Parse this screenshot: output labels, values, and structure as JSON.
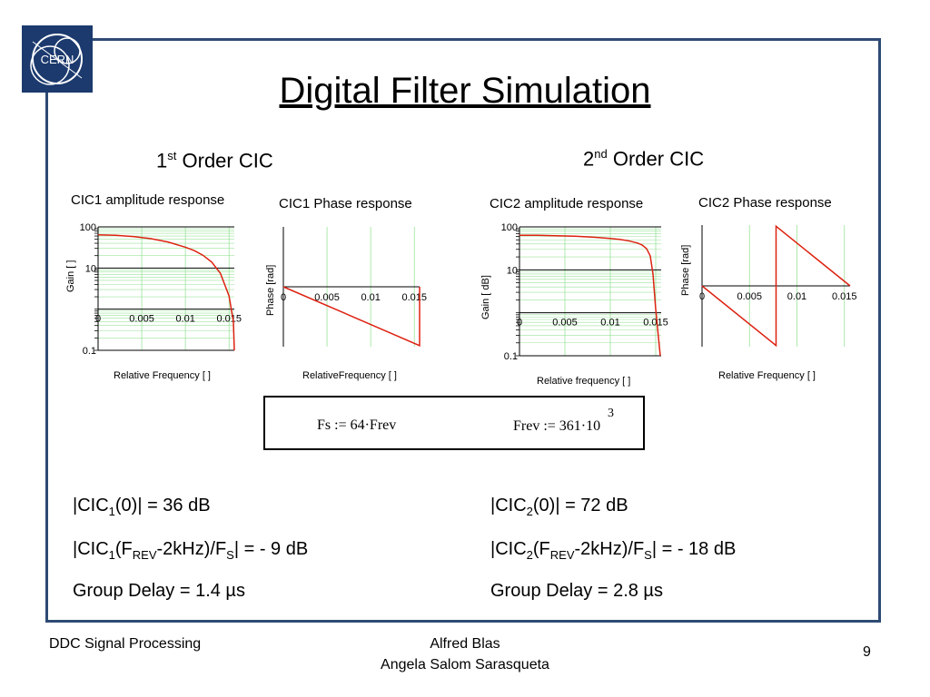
{
  "title": "Digital Filter Simulation",
  "sections": {
    "first": {
      "num": "1",
      "sup": "st",
      "text": "Order CIC"
    },
    "second": {
      "num": "2",
      "sup": "nd",
      "text": "Order CIC"
    }
  },
  "formula": {
    "fs": "Fs := 64·Frev",
    "frev": "Frev := 361·10",
    "frev_exp": "3"
  },
  "results": {
    "cic1_dc": {
      "pre": "|CIC",
      "sub": "1",
      "post": "(0)| = 36 dB"
    },
    "cic1_att": {
      "pre": "|CIC",
      "sub1": "1",
      "mid1": "(F",
      "sub2": "REV",
      "mid2": "-2kHz)/F",
      "sub3": "S",
      "post": "| = - 9 dB"
    },
    "cic1_delay": "Group Delay = 1.4 µs",
    "cic2_dc": {
      "pre": "|CIC",
      "sub": "2",
      "post": "(0)| = 72 dB"
    },
    "cic2_att": {
      "pre": "|CIC",
      "sub1": "2",
      "mid1": "(F",
      "sub2": "REV",
      "mid2": "-2kHz)/F",
      "sub3": "S",
      "post": "| = - 18 dB"
    },
    "cic2_delay": "Group Delay = 2.8 µs"
  },
  "footer": {
    "left": "DDC Signal Processing",
    "author1": "Alfred Blas",
    "author2": "Angela Salom Sarasqueta",
    "page": "9"
  },
  "logo_text": "CERN",
  "colors": {
    "frame": "#2e4a74",
    "curve": "#dd2211",
    "grid": "#9be39b",
    "logo": "#1c3a6e"
  },
  "chart_data": [
    {
      "type": "line",
      "title": "CIC1 amplitude response",
      "xlabel": "Relative Frequency [ ]",
      "ylabel": "Gain [ ]",
      "yscale": "log",
      "xlim": [
        0,
        0.0156
      ],
      "ylim": [
        0.1,
        100
      ],
      "x_ticks": [
        "0",
        "0.005",
        "0.01",
        "0.015"
      ],
      "y_ticks": [
        "0.1",
        "1",
        "10",
        "100"
      ],
      "x": [
        0,
        0.002,
        0.004,
        0.006,
        0.008,
        0.01,
        0.011,
        0.012,
        0.013,
        0.014,
        0.015,
        0.0155,
        0.0156
      ],
      "y": [
        64,
        62.5,
        58.5,
        52,
        43,
        32,
        26.5,
        20.5,
        14,
        7.5,
        2.1,
        0.5,
        0.1
      ]
    },
    {
      "type": "line",
      "title": "CIC1 Phase response",
      "xlabel": "RelativeFrequency [ ]",
      "ylabel": "Phase [rad]",
      "xlim": [
        0,
        0.0156
      ],
      "ylim": [
        -3.2,
        3.2
      ],
      "x_ticks": [
        "0",
        "0.005",
        "0.01",
        "0.015"
      ],
      "x": [
        0,
        0.0156,
        0.0156
      ],
      "y": [
        0,
        -3.14,
        0
      ]
    },
    {
      "type": "line",
      "title": "CIC2 amplitude response",
      "xlabel": "Relative frequency [ ]",
      "ylabel": "Gain [ dB]",
      "yscale": "log",
      "xlim": [
        0,
        0.0156
      ],
      "ylim": [
        0.1,
        100
      ],
      "x_ticks": [
        "0",
        "0.005",
        "0.01",
        "0.015"
      ],
      "y_ticks": [
        "0.1",
        "1",
        "10",
        "100"
      ],
      "x": [
        0,
        0.002,
        0.004,
        0.006,
        0.008,
        0.01,
        0.011,
        0.012,
        0.013,
        0.0135,
        0.014,
        0.0144,
        0.0147,
        0.015,
        0.0155
      ],
      "y": [
        64,
        63.5,
        62.5,
        61,
        58,
        54,
        51,
        47.5,
        42,
        38,
        31,
        21,
        8,
        1.2,
        0.1
      ]
    },
    {
      "type": "line",
      "title": "CIC2 Phase response",
      "xlabel": "Relative Frequency [ ]",
      "ylabel": "Phase [rad]",
      "xlim": [
        0,
        0.0156
      ],
      "ylim": [
        -3.2,
        3.2
      ],
      "x_ticks": [
        "0",
        "0.005",
        "0.01",
        "0.015"
      ],
      "x": [
        0,
        0.0078,
        0.0078,
        0.0156
      ],
      "y": [
        0,
        -3.14,
        3.14,
        0
      ]
    }
  ]
}
